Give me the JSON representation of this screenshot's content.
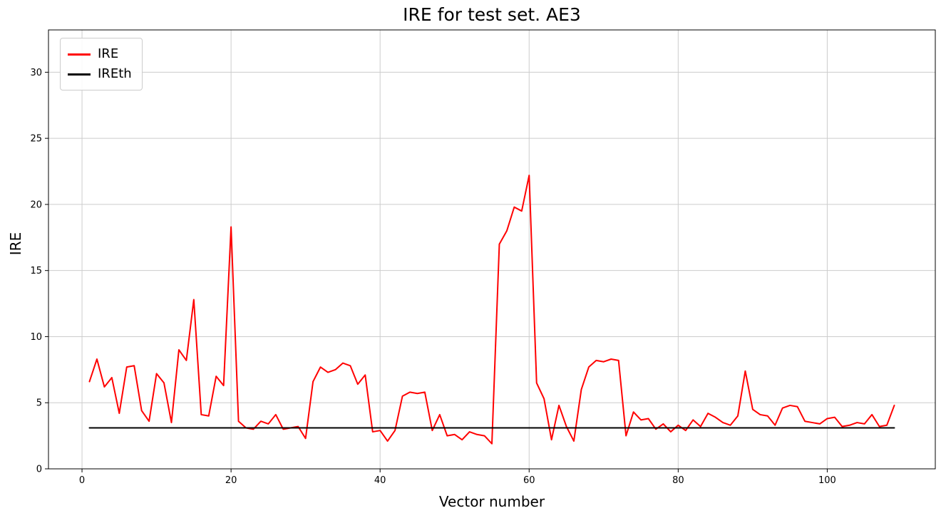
{
  "chart_data": {
    "type": "line",
    "title": "IRE for test set. AE3",
    "xlabel": "Vector number",
    "ylabel": "IRE",
    "xlim": [
      -4.5,
      114.5
    ],
    "ylim": [
      0,
      33.2
    ],
    "xticks": [
      0,
      20,
      40,
      60,
      80,
      100
    ],
    "yticks": [
      0,
      5,
      10,
      15,
      20,
      25,
      30
    ],
    "grid": true,
    "grid_color": "#cccccc",
    "legend_position": "upper left",
    "x": [
      1,
      2,
      3,
      4,
      5,
      6,
      7,
      8,
      9,
      10,
      11,
      12,
      13,
      14,
      15,
      16,
      17,
      18,
      19,
      20,
      21,
      22,
      23,
      24,
      25,
      26,
      27,
      28,
      29,
      30,
      31,
      32,
      33,
      34,
      35,
      36,
      37,
      38,
      39,
      40,
      41,
      42,
      43,
      44,
      45,
      46,
      47,
      48,
      49,
      50,
      51,
      52,
      53,
      54,
      55,
      56,
      57,
      58,
      59,
      60,
      61,
      62,
      63,
      64,
      65,
      66,
      67,
      68,
      69,
      70,
      71,
      72,
      73,
      74,
      75,
      76,
      77,
      78,
      79,
      80,
      81,
      82,
      83,
      84,
      85,
      86,
      87,
      88,
      89,
      90,
      91,
      92,
      93,
      94,
      95,
      96,
      97,
      98,
      99,
      100,
      101,
      102,
      103,
      104,
      105,
      106,
      107,
      108,
      109
    ],
    "series": [
      {
        "name": "IRE",
        "color": "#ff0000",
        "width": 2,
        "values": [
          6.6,
          8.3,
          6.2,
          6.9,
          4.2,
          7.7,
          7.8,
          4.4,
          3.6,
          7.2,
          6.5,
          3.5,
          9.0,
          8.2,
          12.8,
          4.1,
          4.0,
          7.0,
          6.3,
          18.3,
          3.6,
          3.1,
          3.0,
          3.6,
          3.4,
          4.1,
          3.0,
          3.1,
          3.2,
          2.3,
          6.6,
          7.7,
          7.3,
          7.5,
          8.0,
          7.8,
          6.4,
          7.1,
          2.8,
          2.9,
          2.1,
          2.9,
          5.5,
          5.8,
          5.7,
          5.8,
          2.9,
          4.1,
          2.5,
          2.6,
          2.2,
          2.8,
          2.6,
          2.5,
          1.9,
          17.0,
          18.0,
          19.8,
          19.5,
          22.2,
          6.5,
          5.3,
          2.2,
          4.8,
          3.2,
          2.1,
          6.0,
          7.7,
          8.2,
          8.1,
          8.3,
          8.2,
          2.5,
          4.3,
          3.7,
          3.8,
          3.0,
          3.4,
          2.8,
          3.3,
          2.9,
          3.7,
          3.2,
          4.2,
          3.9,
          3.5,
          3.3,
          4.0,
          7.4,
          4.5,
          4.1,
          4.0,
          3.3,
          4.6,
          4.8,
          4.7,
          3.6,
          3.5,
          3.4,
          3.8,
          3.9,
          3.2,
          3.3,
          3.5,
          3.4,
          4.1,
          3.2,
          3.3,
          4.8
        ]
      },
      {
        "name": "IREth",
        "color": "#000000",
        "width": 2,
        "type": "hline",
        "value": 3.1
      }
    ]
  }
}
